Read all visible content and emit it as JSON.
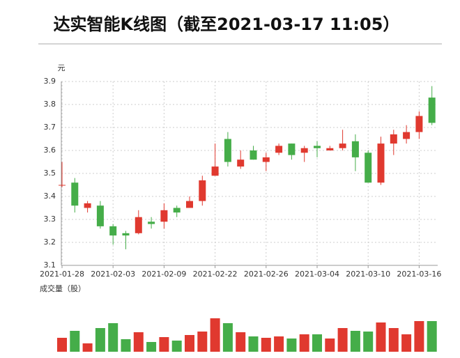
{
  "chart_data": {
    "type": "candlestick",
    "title": "达实智能K线图（截至2021-03-17 11:05）",
    "y_label": "元",
    "volume_label": "成交量（股）",
    "up_color": "#e0392f",
    "down_color": "#45ad49",
    "categories": [
      "2021-01-28",
      null,
      null,
      null,
      "2021-02-03",
      null,
      null,
      null,
      "2021-02-09",
      null,
      null,
      null,
      "2021-02-22",
      null,
      null,
      null,
      "2021-02-26",
      null,
      null,
      null,
      "2021-03-04",
      null,
      null,
      null,
      "2021-03-10",
      null,
      null,
      null,
      "2021-03-16",
      null
    ],
    "open": [
      3.45,
      3.46,
      3.35,
      3.36,
      3.27,
      3.24,
      3.24,
      3.29,
      3.29,
      3.35,
      3.35,
      3.38,
      3.49,
      3.65,
      3.53,
      3.6,
      3.55,
      3.59,
      3.63,
      3.59,
      3.62,
      3.6,
      3.61,
      3.64,
      3.59,
      3.46,
      3.63,
      3.65,
      3.68,
      3.83
    ],
    "high": [
      3.55,
      3.48,
      3.38,
      3.38,
      3.28,
      3.25,
      3.34,
      3.31,
      3.37,
      3.36,
      3.4,
      3.49,
      3.63,
      3.68,
      3.6,
      3.62,
      3.59,
      3.63,
      3.63,
      3.62,
      3.64,
      3.62,
      3.69,
      3.67,
      3.6,
      3.66,
      3.69,
      3.71,
      3.77,
      3.88
    ],
    "low": [
      3.44,
      3.33,
      3.33,
      3.26,
      3.19,
      3.17,
      3.235,
      3.26,
      3.26,
      3.31,
      3.35,
      3.36,
      3.49,
      3.53,
      3.52,
      3.56,
      3.51,
      3.58,
      3.56,
      3.55,
      3.57,
      3.6,
      3.6,
      3.51,
      3.46,
      3.45,
      3.58,
      3.63,
      3.65,
      3.71
    ],
    "close": [
      3.45,
      3.36,
      3.37,
      3.27,
      3.23,
      3.23,
      3.31,
      3.28,
      3.34,
      3.33,
      3.38,
      3.47,
      3.53,
      3.55,
      3.56,
      3.56,
      3.57,
      3.62,
      3.58,
      3.61,
      3.61,
      3.61,
      3.63,
      3.57,
      3.46,
      3.63,
      3.67,
      3.68,
      3.75,
      3.72
    ],
    "volume": [
      20,
      30,
      12,
      34,
      41,
      18,
      28,
      14,
      21,
      16,
      24,
      29,
      48,
      41,
      28,
      22,
      20,
      22,
      19,
      25,
      25,
      19,
      34,
      30,
      29,
      42,
      34,
      25,
      44,
      44
    ],
    "ylim": [
      3.1,
      3.9
    ],
    "yticks": [
      3.1,
      3.2,
      3.3,
      3.4,
      3.5,
      3.6,
      3.7,
      3.8,
      3.9
    ],
    "grid": true
  }
}
